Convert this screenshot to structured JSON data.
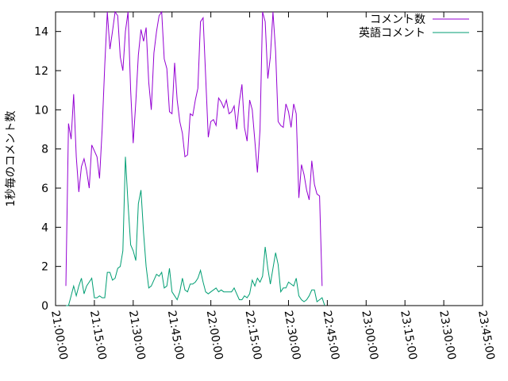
{
  "chart_data": {
    "type": "line",
    "ylabel": "1秒毎のコメント数",
    "xlabel": "",
    "ylim": [
      0,
      15
    ],
    "yticks": [
      0,
      2,
      4,
      6,
      8,
      10,
      12,
      14
    ],
    "xlim": [
      "21:00:00",
      "23:45:00"
    ],
    "xticks": [
      "21:00:00",
      "21:15:00",
      "21:30:00",
      "21:45:00",
      "22:00:00",
      "22:15:00",
      "22:30:00",
      "22:45:00",
      "23:00:00",
      "23:15:00",
      "23:30:00",
      "23:45:00"
    ],
    "legend_position": "top-right",
    "x_step_seconds": 60,
    "x_start": "21:04:00",
    "series": [
      {
        "name": "コメント数",
        "color": "#9400d3",
        "values": [
          1.0,
          9.3,
          8.5,
          10.8,
          7.6,
          5.8,
          7.1,
          7.5,
          6.9,
          6.0,
          8.2,
          7.9,
          7.6,
          6.5,
          9.0,
          12.3,
          15.0,
          13.1,
          14.0,
          15.0,
          14.8,
          12.7,
          12.0,
          14.0,
          15.0,
          11.0,
          8.3,
          10.4,
          12.8,
          14.1,
          13.5,
          14.2,
          11.4,
          10.0,
          12.9,
          14.0,
          14.8,
          15.0,
          12.6,
          12.1,
          9.9,
          9.8,
          12.4,
          10.5,
          9.4,
          8.8,
          7.6,
          7.7,
          9.8,
          9.7,
          10.5,
          11.1,
          14.5,
          14.7,
          11.7,
          8.6,
          9.4,
          9.5,
          9.2,
          10.6,
          10.4,
          10.1,
          10.5,
          9.8,
          9.9,
          10.2,
          9.0,
          10.4,
          11.3,
          9.1,
          8.4,
          10.5,
          10.0,
          8.4,
          6.8,
          9.0,
          15.0,
          14.5,
          11.6,
          12.7,
          15.0,
          13.0,
          9.4,
          9.2,
          9.1,
          10.3,
          9.9,
          9.1,
          10.3,
          9.8,
          5.5,
          7.2,
          6.7,
          5.9,
          5.4,
          7.4,
          6.2,
          5.7,
          5.6,
          1.0
        ]
      },
      {
        "name": "英語コメント",
        "color": "#009e73",
        "values": [
          0.0,
          0.0,
          0.5,
          1.0,
          0.5,
          1.0,
          1.4,
          0.6,
          1.0,
          1.2,
          1.4,
          0.4,
          0.4,
          0.5,
          0.4,
          0.4,
          1.7,
          1.7,
          1.3,
          1.4,
          1.9,
          2.0,
          2.8,
          7.6,
          5.2,
          3.1,
          2.8,
          2.3,
          5.2,
          5.9,
          3.7,
          2.0,
          0.9,
          1.0,
          1.3,
          1.6,
          1.5,
          1.7,
          0.9,
          1.0,
          1.9,
          0.7,
          0.5,
          0.3,
          0.7,
          1.4,
          0.8,
          0.7,
          1.1,
          1.1,
          1.2,
          1.4,
          1.8,
          1.2,
          0.7,
          0.6,
          0.7,
          0.8,
          0.9,
          0.7,
          0.8,
          0.7,
          0.7,
          0.7,
          0.7,
          0.9,
          0.6,
          0.3,
          0.3,
          0.5,
          0.4,
          0.6,
          1.3,
          1.0,
          1.4,
          1.2,
          1.5,
          3.0,
          1.9,
          1.1,
          1.9,
          2.7,
          2.1,
          0.7,
          0.9,
          0.9,
          1.2,
          1.1,
          1.0,
          1.4,
          0.5,
          0.3,
          0.2,
          0.3,
          0.5,
          0.8,
          0.8,
          0.2,
          0.3,
          0.4,
          0.0
        ]
      }
    ]
  }
}
